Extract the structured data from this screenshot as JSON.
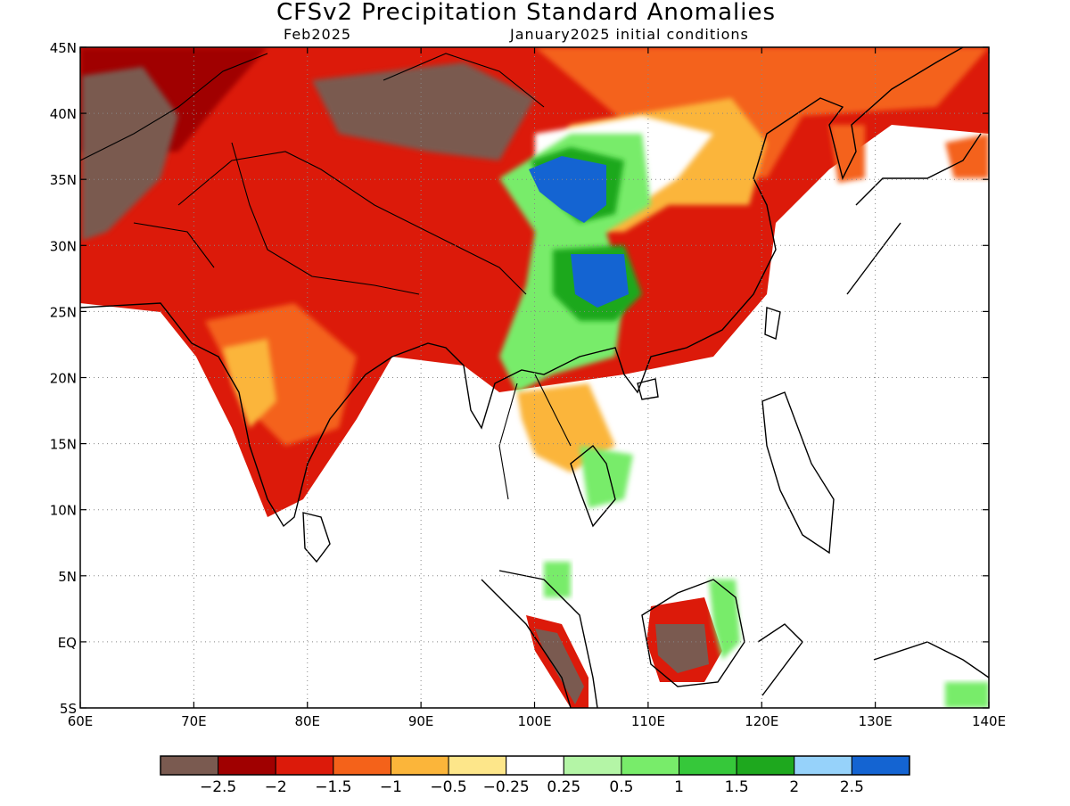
{
  "title": "CFSv2 Precipitation Standard Anomalies",
  "valid_month": "Feb2025",
  "init_label": "January2025 initial conditions",
  "map": {
    "lon_min": 60,
    "lon_max": 140,
    "lat_min": -5,
    "lat_max": 45,
    "lon_ticks": [
      {
        "value": 60,
        "label": "60E"
      },
      {
        "value": 70,
        "label": "70E"
      },
      {
        "value": 80,
        "label": "80E"
      },
      {
        "value": 90,
        "label": "90E"
      },
      {
        "value": 100,
        "label": "100E"
      },
      {
        "value": 110,
        "label": "110E"
      },
      {
        "value": 120,
        "label": "120E"
      },
      {
        "value": 130,
        "label": "130E"
      },
      {
        "value": 140,
        "label": "140E"
      }
    ],
    "lat_ticks": [
      {
        "value": 45,
        "label": "45N"
      },
      {
        "value": 40,
        "label": "40N"
      },
      {
        "value": 35,
        "label": "35N"
      },
      {
        "value": 30,
        "label": "30N"
      },
      {
        "value": 25,
        "label": "25N"
      },
      {
        "value": 20,
        "label": "20N"
      },
      {
        "value": 15,
        "label": "15N"
      },
      {
        "value": 10,
        "label": "10N"
      },
      {
        "value": 5,
        "label": "5N"
      },
      {
        "value": 0,
        "label": "EQ"
      },
      {
        "value": -5,
        "label": "5S"
      }
    ],
    "grid": true
  },
  "colorbar": {
    "colors": [
      "#7a5a50",
      "#a00000",
      "#dc1a0a",
      "#f4621a",
      "#fbb53a",
      "#fde68a",
      "#ffffff",
      "#b4f5a6",
      "#78ec6a",
      "#36c83a",
      "#1ea81e",
      "#96d2fa",
      "#1464d2"
    ],
    "labels": [
      "−2.5",
      "−2",
      "−1.5",
      "−1",
      "−0.5",
      "−0.25",
      "0.25",
      "0.5",
      "1",
      "1.5",
      "2",
      "2.5"
    ]
  }
}
